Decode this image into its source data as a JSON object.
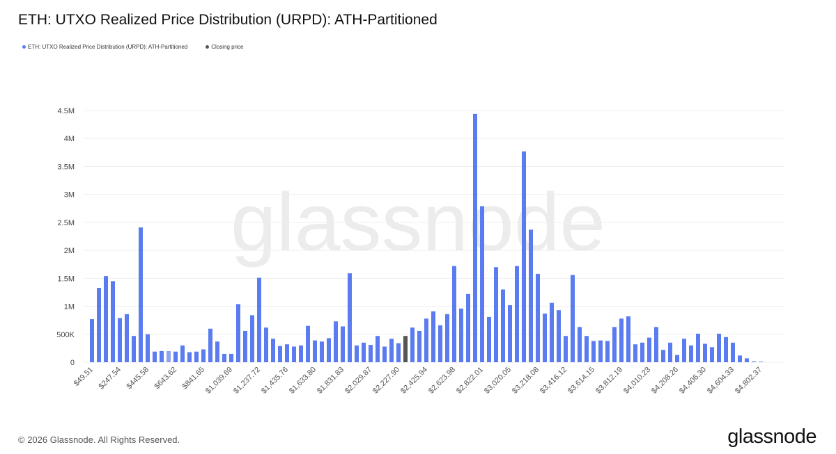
{
  "header": {
    "title": "ETH: UTXO Realized Price Distribution (URPD): ATH-Partitioned"
  },
  "legend": [
    {
      "label": "ETH: UTXO Realized Price Distribution (URPD): ATH-Partitioned",
      "color": "#5b7cf0"
    },
    {
      "label": "Closing price",
      "color": "#555555"
    }
  ],
  "watermark": "glassnode",
  "footer": {
    "copyright": "© 2026 Glassnode. All Rights Reserved.",
    "logo": "glassnode"
  },
  "chart_data": {
    "type": "bar",
    "title": "ETH: UTXO Realized Price Distribution (URPD): ATH-Partitioned",
    "xlabel": "",
    "ylabel": "",
    "ylim": [
      0,
      4500000
    ],
    "grid": true,
    "legend_position": "top-left",
    "bin_width_usd": 49.51,
    "y_ticks": [
      "0",
      "500K",
      "1M",
      "1.5M",
      "2M",
      "2.5M",
      "3M",
      "3.5M",
      "4M",
      "4.5M"
    ],
    "y_tick_values": [
      0,
      500000,
      1000000,
      1500000,
      2000000,
      2500000,
      3000000,
      3500000,
      4000000,
      4500000
    ],
    "x_tick_labels": [
      "$49.51",
      "$247.54",
      "$445.58",
      "$643.62",
      "$841.65",
      "$1,039.69",
      "$1,237.72",
      "$1,435.76",
      "$1,633.80",
      "$1,831.83",
      "$2,029.87",
      "$2,227.90",
      "$2,425.94",
      "$2,623.98",
      "$2,822.01",
      "$3,020.05",
      "$3,218.08",
      "$3,416.12",
      "$3,614.15",
      "$3,812.19",
      "$4,010.23",
      "$4,208.26",
      "$4,406.30",
      "$4,604.33",
      "$4,802.37"
    ],
    "x_tick_every": 4,
    "closing_price_bin": 46,
    "colors": {
      "series": "#5b7cf0",
      "closing": "#555555",
      "faded": "#8fa3ef"
    },
    "faded_bins": [
      12
    ],
    "series": [
      {
        "name": "ETH: UTXO Realized Price Distribution (URPD): ATH-Partitioned",
        "values": [
          770000,
          1330000,
          1540000,
          1450000,
          790000,
          860000,
          470000,
          2410000,
          500000,
          190000,
          200000,
          200000,
          190000,
          300000,
          180000,
          190000,
          230000,
          600000,
          370000,
          150000,
          150000,
          1040000,
          560000,
          840000,
          1510000,
          620000,
          420000,
          290000,
          320000,
          280000,
          300000,
          650000,
          390000,
          370000,
          430000,
          730000,
          640000,
          1590000,
          300000,
          350000,
          310000,
          470000,
          280000,
          420000,
          340000,
          470000,
          620000,
          560000,
          780000,
          910000,
          660000,
          860000,
          1720000,
          960000,
          1220000,
          4440000,
          2790000,
          810000,
          1700000,
          1300000,
          1020000,
          1720000,
          3770000,
          2370000,
          1580000,
          870000,
          1060000,
          930000,
          470000,
          1560000,
          630000,
          470000,
          380000,
          390000,
          380000,
          630000,
          780000,
          820000,
          320000,
          350000,
          440000,
          630000,
          220000,
          350000,
          130000,
          420000,
          300000,
          510000,
          330000,
          270000,
          510000,
          450000,
          350000,
          120000,
          70000,
          15000,
          10000
        ]
      }
    ]
  }
}
